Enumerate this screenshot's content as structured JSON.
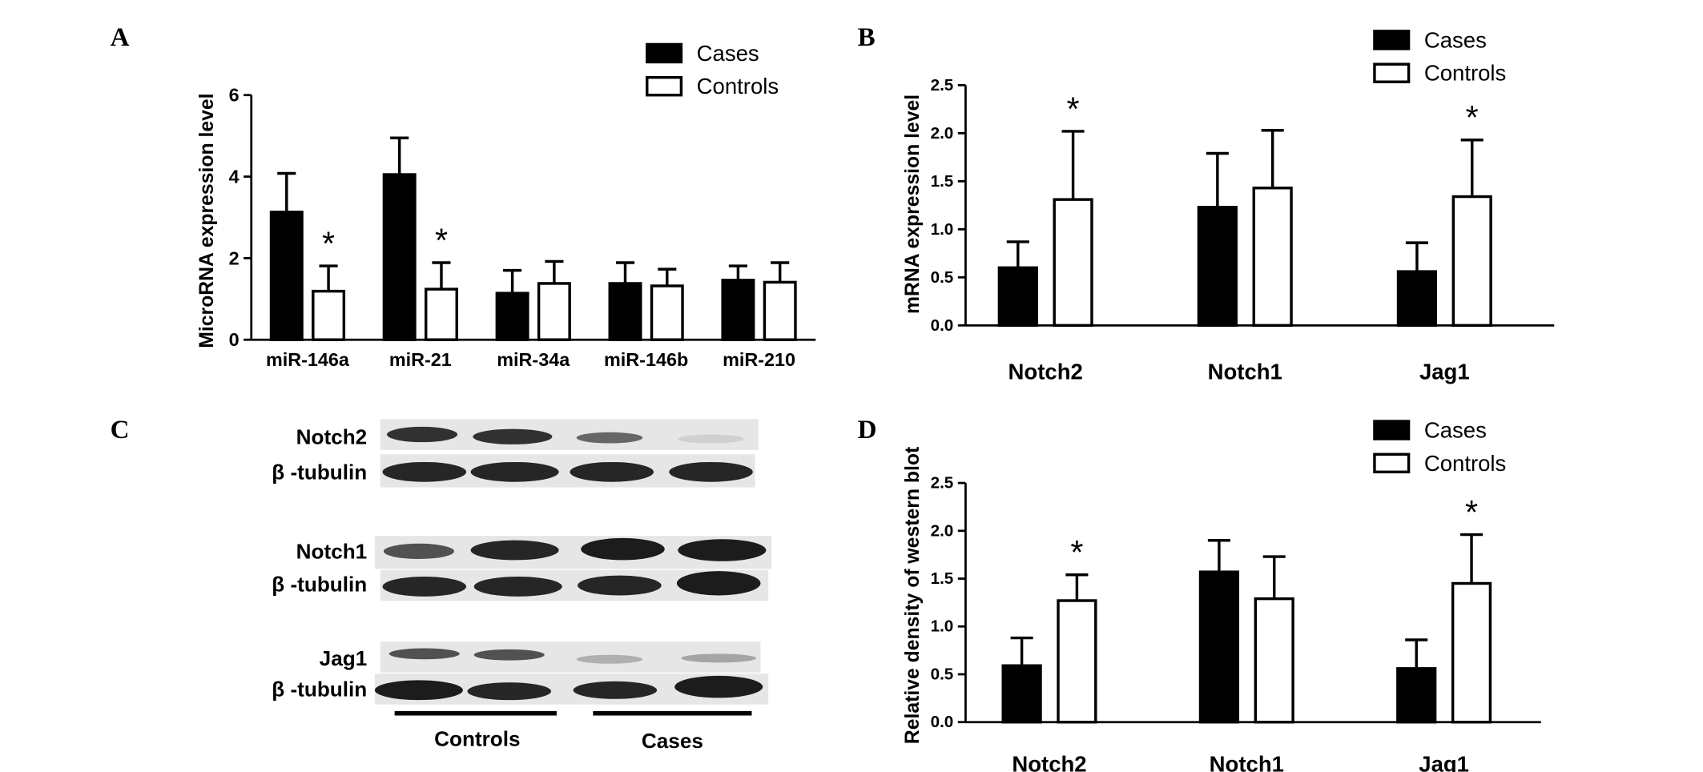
{
  "chart_data": [
    {
      "type": "bar",
      "panel": "A",
      "ylabel": "MicroRNA expression level",
      "categories": [
        "miR-146a",
        "miR-21",
        "miR-34a",
        "miR-146b",
        "miR-210"
      ],
      "series": [
        {
          "name": "Cases",
          "color": "#000000",
          "values": [
            3.13,
            4.05,
            1.14,
            1.38,
            1.46
          ],
          "errors": [
            0.95,
            0.9,
            0.56,
            0.51,
            0.35
          ]
        },
        {
          "name": "Controls",
          "color": "#ffffff",
          "values": [
            1.19,
            1.24,
            1.38,
            1.32,
            1.41
          ],
          "errors": [
            0.62,
            0.65,
            0.54,
            0.41,
            0.48
          ]
        }
      ],
      "annotations": [
        {
          "text": "*",
          "series": "Controls",
          "category": "miR-146a"
        },
        {
          "text": "*",
          "series": "Controls",
          "category": "miR-21"
        }
      ],
      "ylim": [
        0,
        6
      ],
      "yticks": [
        0,
        2,
        4,
        6
      ],
      "legend": "top-right"
    },
    {
      "type": "bar",
      "panel": "B",
      "ylabel": "mRNA expression level",
      "categories": [
        "Notch2",
        "Notch1",
        "Jag1"
      ],
      "series": [
        {
          "name": "Cases",
          "color": "#000000",
          "values": [
            0.6,
            1.23,
            0.56
          ],
          "errors": [
            0.27,
            0.56,
            0.3
          ]
        },
        {
          "name": "Controls",
          "color": "#ffffff",
          "values": [
            1.31,
            1.43,
            1.34
          ],
          "errors": [
            0.71,
            0.6,
            0.59
          ]
        }
      ],
      "annotations": [
        {
          "text": "*",
          "series": "Controls",
          "category": "Notch2"
        },
        {
          "text": "*",
          "series": "Controls",
          "category": "Jag1"
        }
      ],
      "ylim": [
        0,
        2.5
      ],
      "yticks": [
        {
          "value": 0,
          "label": "0.0"
        },
        0.5,
        {
          "value": 1,
          "label": "1.0"
        },
        1.5,
        {
          "value": 2,
          "label": "2.0"
        },
        2.5
      ],
      "legend": "top-right"
    },
    {
      "type": "bar",
      "panel": "D",
      "ylabel": "Relative density of western blot",
      "categories": [
        "Notch2",
        "Notch1",
        "Jag1"
      ],
      "series": [
        {
          "name": "Cases",
          "color": "#000000",
          "values": [
            0.59,
            1.57,
            0.56
          ],
          "errors": [
            0.29,
            0.33,
            0.3
          ]
        },
        {
          "name": "Controls",
          "color": "#ffffff",
          "values": [
            1.27,
            1.29,
            1.45
          ],
          "errors": [
            0.27,
            0.44,
            0.51
          ]
        }
      ],
      "annotations": [
        {
          "text": "*",
          "series": "Controls",
          "category": "Notch2"
        },
        {
          "text": "*",
          "series": "Controls",
          "category": "Jag1"
        }
      ],
      "ylim": [
        0,
        2.5
      ],
      "yticks": [
        {
          "value": 0,
          "label": "0.0"
        },
        0.5,
        {
          "value": 1,
          "label": "1.0"
        },
        1.5,
        {
          "value": 2,
          "label": "2.0"
        },
        2.5
      ],
      "legend": "top-right"
    }
  ],
  "blot": {
    "panel": "C",
    "rows": [
      "Notch2",
      "β -tubulin",
      "Notch1",
      "β -tubulin",
      "Jag1",
      "β -tubulin"
    ],
    "groups": [
      "Controls",
      "Cases"
    ]
  }
}
